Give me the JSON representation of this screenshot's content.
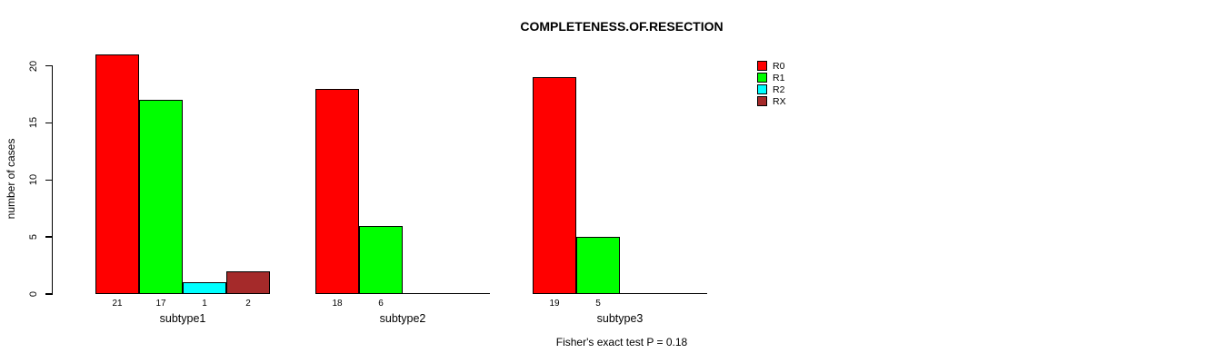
{
  "title": "COMPLETENESS.OF.RESECTION",
  "ylabel": "number of cases",
  "footer": "Fisher's exact test P = 0.18",
  "legend": [
    {
      "label": "R0",
      "color": "#FF0000"
    },
    {
      "label": "R1",
      "color": "#00FF00"
    },
    {
      "label": "R2",
      "color": "#00FFFF"
    },
    {
      "label": "RX",
      "color": "#A52A2A"
    }
  ],
  "chart_data": {
    "type": "bar",
    "title": "COMPLETENESS.OF.RESECTION",
    "xlabel": "",
    "ylabel": "number of cases",
    "categories": [
      "subtype1",
      "subtype2",
      "subtype3"
    ],
    "series": [
      {
        "name": "R0",
        "color": "#FF0000",
        "values": [
          21,
          18,
          19
        ]
      },
      {
        "name": "R1",
        "color": "#00FF00",
        "values": [
          17,
          6,
          5
        ]
      },
      {
        "name": "R2",
        "color": "#00FFFF",
        "values": [
          1,
          0,
          0
        ]
      },
      {
        "name": "RX",
        "color": "#A52A2A",
        "values": [
          2,
          0,
          0
        ]
      }
    ],
    "bar_value_labels": true,
    "yticks": [
      0,
      5,
      10,
      15,
      20
    ],
    "ylim": [
      0,
      21
    ],
    "grid": false,
    "legend_position": "right",
    "annotation": "Fisher's exact test P = 0.18"
  }
}
